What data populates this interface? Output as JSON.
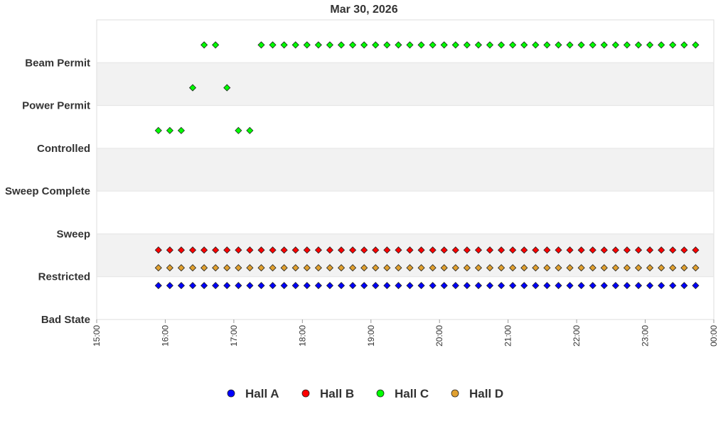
{
  "chart_data": {
    "type": "scatter",
    "title": "Mar 30, 2026",
    "xlabel": "",
    "ylabel": "",
    "x_ticks": [
      "15:00",
      "16:00",
      "17:00",
      "18:00",
      "19:00",
      "20:00",
      "21:00",
      "22:00",
      "23:00",
      "00:00"
    ],
    "x_range_hours": [
      15,
      24
    ],
    "y_categories": [
      "Bad State",
      "Restricted",
      "Sweep",
      "Sweep Complete",
      "Controlled",
      "Power Permit",
      "Beam Permit"
    ],
    "grid": "alternating horizontal bands",
    "legend_position": "bottom",
    "series": [
      {
        "name": "Hall A",
        "color": "#0000ff",
        "state": "Restricted",
        "start_hour": 15.9,
        "end_hour": 23.767,
        "step_hours": 0.1667,
        "missing_hours": []
      },
      {
        "name": "Hall B",
        "color": "#ff0000",
        "state": "Restricted",
        "start_hour": 15.9,
        "end_hour": 23.767,
        "step_hours": 0.1667,
        "missing_hours": []
      },
      {
        "name": "Hall C",
        "color": "#00ff00",
        "segments": [
          {
            "state": "Controlled",
            "hours": [
              15.9,
              16.067,
              16.233,
              17.067,
              17.233
            ]
          },
          {
            "state": "Power Permit",
            "hours": [
              16.4,
              16.9
            ]
          },
          {
            "state": "Beam Permit",
            "hours": [
              16.567,
              16.733
            ],
            "start_hour": 17.4,
            "end_hour": 23.767,
            "step_hours": 0.1667
          }
        ]
      },
      {
        "name": "Hall D",
        "color": "#e0a030",
        "state": "Restricted",
        "start_hour": 15.9,
        "end_hour": 23.767,
        "step_hours": 0.1667,
        "missing_hours": []
      }
    ]
  }
}
